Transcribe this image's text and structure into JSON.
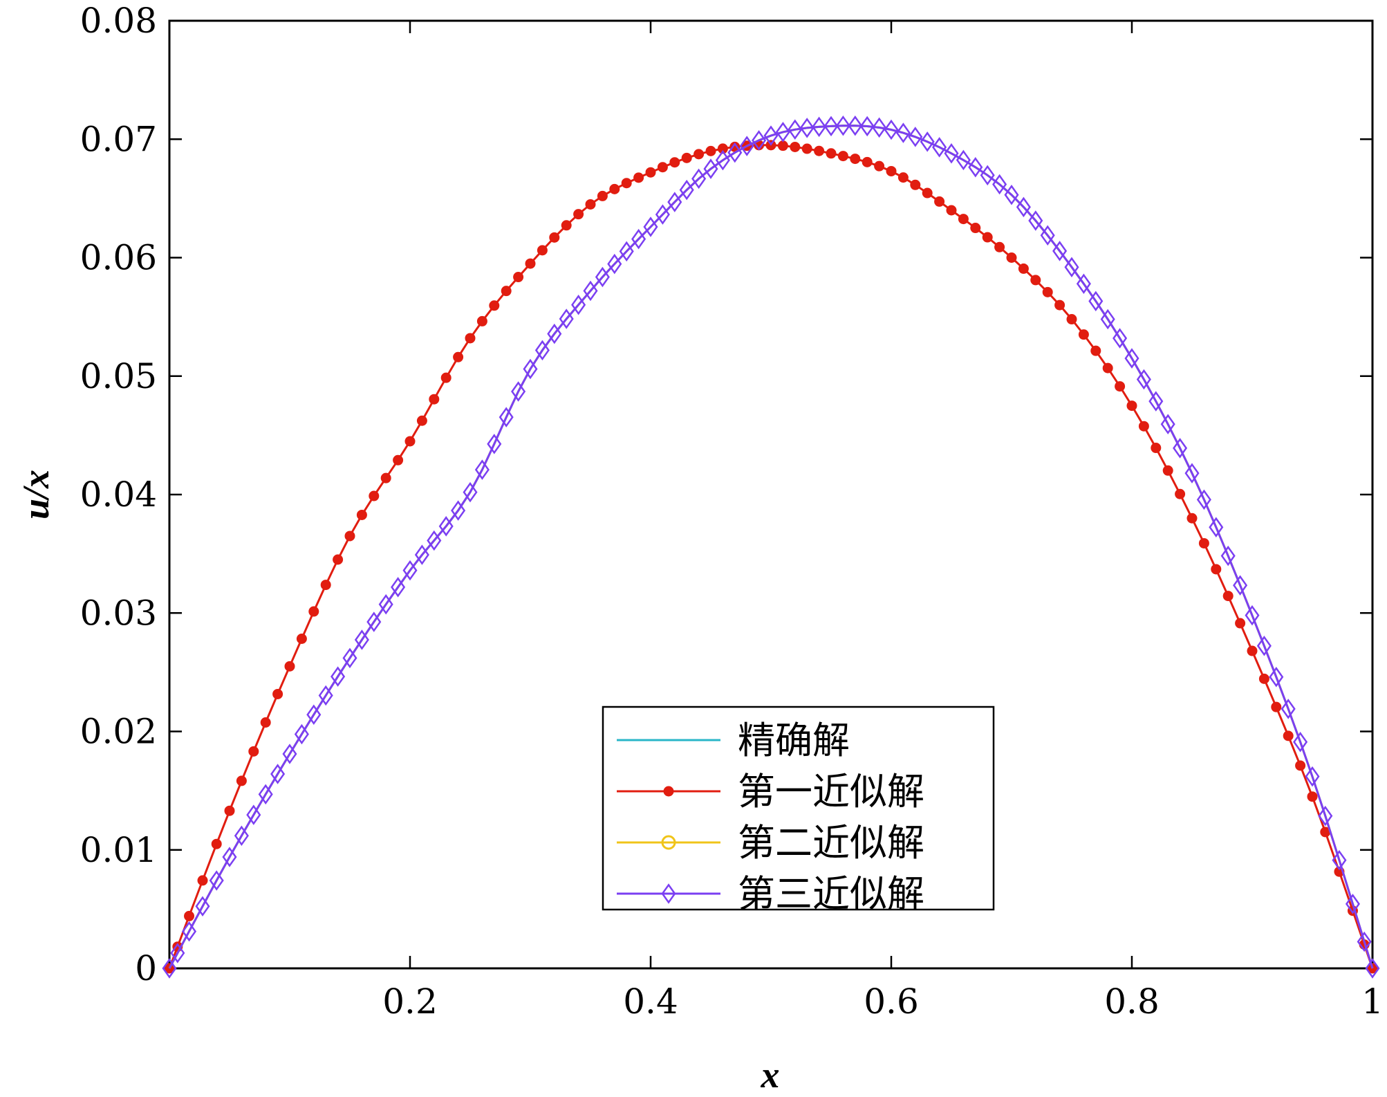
{
  "chart_data": {
    "type": "line",
    "xlabel": "x",
    "ylabel": "u/x",
    "xlim": [
      0,
      1
    ],
    "ylim": [
      0,
      0.08
    ],
    "x_ticks": [
      0.2,
      0.4,
      0.6,
      0.8,
      1
    ],
    "x_tick_labels": [
      "0.2",
      "0.4",
      "0.6",
      "0.8",
      "1"
    ],
    "y_ticks": [
      0,
      0.01,
      0.02,
      0.03,
      0.04,
      0.05,
      0.06,
      0.07,
      0.08
    ],
    "y_tick_labels": [
      "0",
      "0.01",
      "0.02",
      "0.03",
      "0.04",
      "0.05",
      "0.06",
      "0.07",
      "0.08"
    ],
    "grid": false,
    "legend_position": "bottom-center",
    "x": [
      0,
      0.05,
      0.1,
      0.15,
      0.2,
      0.25,
      0.3,
      0.35,
      0.4,
      0.45,
      0.5,
      0.55,
      0.6,
      0.65,
      0.7,
      0.75,
      0.8,
      0.85,
      0.9,
      0.95,
      1
    ],
    "series": [
      {
        "name": "精确解",
        "color": "#29b6c8",
        "marker": "none",
        "values": [
          0,
          0.0094,
          0.0181,
          0.0262,
          0.0336,
          0.0402,
          0.0506,
          0.0572,
          0.0626,
          0.0675,
          0.0703,
          0.0711,
          0.0708,
          0.0688,
          0.0653,
          0.0592,
          0.0515,
          0.0418,
          0.0298,
          0.0162,
          0
        ]
      },
      {
        "name": "第一近似解",
        "color": "#e11d10",
        "marker": "star",
        "values": [
          0,
          0.0133,
          0.0255,
          0.0365,
          0.0445,
          0.0532,
          0.0595,
          0.0645,
          0.0672,
          0.069,
          0.0695,
          0.0688,
          0.0673,
          0.064,
          0.06,
          0.0548,
          0.0475,
          0.038,
          0.0268,
          0.0145,
          0
        ]
      },
      {
        "name": "第二近似解",
        "color": "#f0c419",
        "marker": "circle",
        "values": [
          0,
          0.0094,
          0.0181,
          0.0262,
          0.0336,
          0.0402,
          0.0506,
          0.0572,
          0.0626,
          0.0675,
          0.0703,
          0.0711,
          0.0708,
          0.0688,
          0.0653,
          0.0592,
          0.0515,
          0.0418,
          0.0298,
          0.0162,
          0
        ]
      },
      {
        "name": "第三近似解",
        "color": "#7b3ff2",
        "marker": "diamond",
        "values": [
          0,
          0.0094,
          0.0181,
          0.0262,
          0.0336,
          0.0402,
          0.0506,
          0.0572,
          0.0626,
          0.0675,
          0.0703,
          0.0711,
          0.0708,
          0.0688,
          0.0653,
          0.0592,
          0.0515,
          0.0418,
          0.0298,
          0.0162,
          0
        ]
      }
    ]
  }
}
